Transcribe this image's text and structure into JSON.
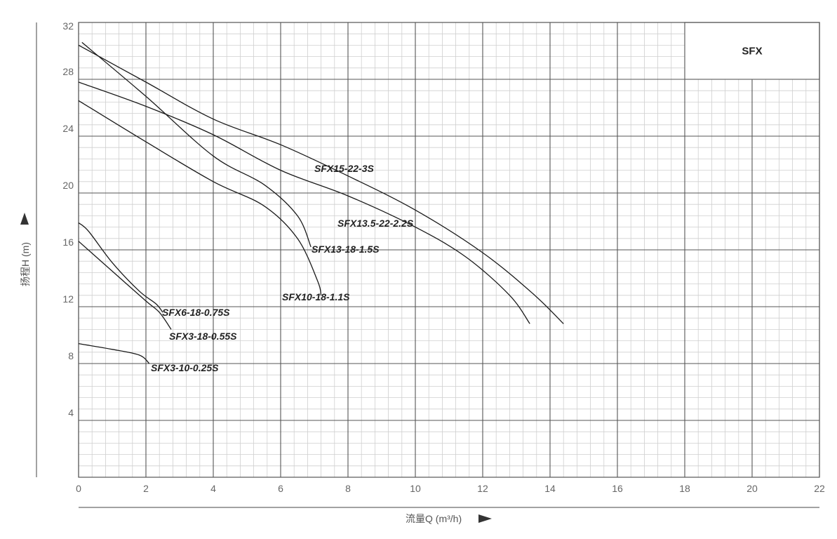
{
  "chart_data": {
    "type": "line",
    "title": "SFX",
    "xlabel": "流量Q (m³/h)",
    "ylabel": "扬程H (m)",
    "xlim": [
      0,
      22
    ],
    "ylim": [
      0,
      32
    ],
    "x_ticks": [
      "0",
      "2",
      "4",
      "6",
      "8",
      "10",
      "12",
      "14",
      "16",
      "18",
      "20",
      "22"
    ],
    "y_ticks": [
      "4",
      "8",
      "12",
      "16",
      "20",
      "24",
      "28",
      "32"
    ],
    "grid": true,
    "series": [
      {
        "name": "SFX15-22-3S",
        "label": "SFX15-22-3S",
        "points": [
          [
            0,
            30.4
          ],
          [
            2,
            27.8
          ],
          [
            4,
            25.2
          ],
          [
            6,
            23.4
          ],
          [
            8,
            21.2
          ],
          [
            10,
            18.8
          ],
          [
            12,
            15.8
          ],
          [
            13.5,
            12.9
          ],
          [
            14.4,
            10.8
          ]
        ]
      },
      {
        "name": "SFX13.5-22-2.2S",
        "label": "SFX13.5-22-2.2S",
        "points": [
          [
            0,
            27.8
          ],
          [
            2,
            26.1
          ],
          [
            4,
            24.1
          ],
          [
            6,
            21.6
          ],
          [
            8,
            19.8
          ],
          [
            10,
            17.6
          ],
          [
            11.5,
            15.5
          ],
          [
            12.8,
            12.8
          ],
          [
            13.4,
            10.8
          ]
        ]
      },
      {
        "name": "SFX13-18-1.5S",
        "label": "SFX13-18-1.5S",
        "points": [
          [
            0.1,
            30.6
          ],
          [
            2,
            26.8
          ],
          [
            4,
            22.6
          ],
          [
            5.5,
            20.6
          ],
          [
            6.5,
            18.4
          ],
          [
            6.9,
            16.2
          ]
        ]
      },
      {
        "name": "SFX10-18-1.1S",
        "label": "SFX10-18-1.1S",
        "points": [
          [
            0,
            26.5
          ],
          [
            2,
            23.6
          ],
          [
            4,
            20.8
          ],
          [
            5.5,
            19.1
          ],
          [
            6.5,
            16.8
          ],
          [
            7.1,
            13.8
          ],
          [
            7.2,
            12.8
          ]
        ]
      },
      {
        "name": "SFX6-18-0.75S",
        "label": "SFX6-18-0.75S",
        "points": [
          [
            0,
            17.9
          ],
          [
            0.3,
            17.3
          ],
          [
            1,
            15.1
          ],
          [
            1.8,
            13.1
          ],
          [
            2.3,
            12.2
          ],
          [
            2.5,
            11.6
          ]
        ]
      },
      {
        "name": "SFX3-18-0.55S",
        "label": "SFX3-18-0.55S",
        "points": [
          [
            0,
            16.6
          ],
          [
            1,
            14.5
          ],
          [
            2,
            12.4
          ],
          [
            2.4,
            11.6
          ],
          [
            2.75,
            10.4
          ]
        ]
      },
      {
        "name": "SFX3-10-0.25S",
        "label": "SFX3-10-0.25S",
        "points": [
          [
            0,
            9.4
          ],
          [
            1,
            9.0
          ],
          [
            1.8,
            8.6
          ],
          [
            2.1,
            8.0
          ]
        ]
      }
    ]
  }
}
